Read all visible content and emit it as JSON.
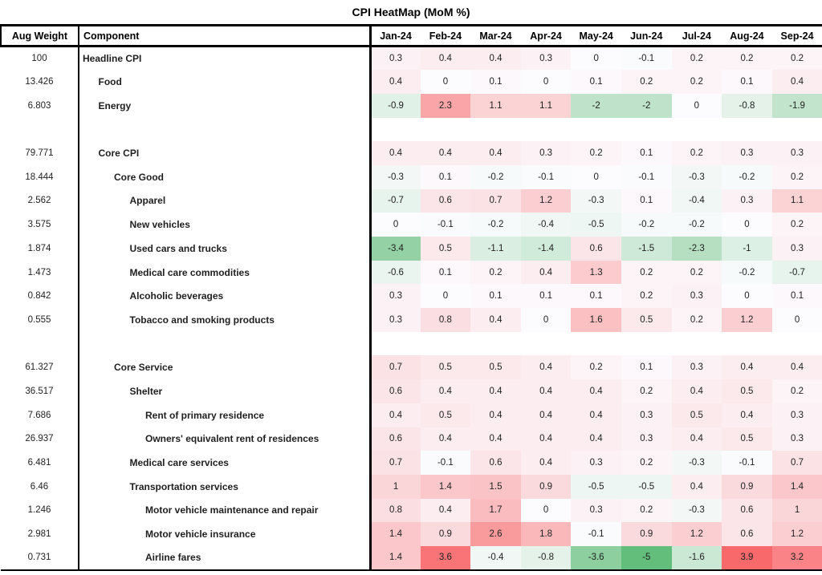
{
  "title": "CPI HeatMap (MoM %)",
  "header": {
    "weight": "Aug Weight",
    "component": "Component"
  },
  "chart_data": {
    "type": "heatmap",
    "title": "CPI HeatMap (MoM %)",
    "columns": [
      "Jan-24",
      "Feb-24",
      "Mar-24",
      "Apr-24",
      "May-24",
      "Jun-24",
      "Jul-24",
      "Aug-24",
      "Sep-24"
    ],
    "color_scale": {
      "min": -5,
      "mid": 0,
      "max": 3.9,
      "min_color": "#63BE7B",
      "mid_color": "#FCFCFF",
      "max_color": "#F8696B"
    },
    "rows": [
      {
        "weight": 100,
        "component": "Headline CPI",
        "indent": 0,
        "values": [
          0.3,
          0.4,
          0.4,
          0.3,
          0,
          -0.1,
          0.2,
          0.2,
          0.2
        ]
      },
      {
        "weight": 13.426,
        "component": "Food",
        "indent": 1,
        "values": [
          0.4,
          0,
          0.1,
          0,
          0.1,
          0.2,
          0.2,
          0.1,
          0.4
        ]
      },
      {
        "weight": 6.803,
        "component": "Energy",
        "indent": 1,
        "values": [
          -0.9,
          2.3,
          1.1,
          1.1,
          -2,
          -2,
          0,
          -0.8,
          -1.9
        ]
      },
      {
        "spacer": true
      },
      {
        "weight": 79.771,
        "component": "Core CPI",
        "indent": 1,
        "values": [
          0.4,
          0.4,
          0.4,
          0.3,
          0.2,
          0.1,
          0.2,
          0.3,
          0.3
        ]
      },
      {
        "weight": 18.444,
        "component": "Core Good",
        "indent": 2,
        "values": [
          -0.3,
          0.1,
          -0.2,
          -0.1,
          0,
          -0.1,
          -0.3,
          -0.2,
          0.2
        ]
      },
      {
        "weight": 2.562,
        "component": "Apparel",
        "indent": 3,
        "values": [
          -0.7,
          0.6,
          0.7,
          1.2,
          -0.3,
          0.1,
          -0.4,
          0.3,
          1.1
        ]
      },
      {
        "weight": 3.575,
        "component": "New vehicles",
        "indent": 3,
        "values": [
          0,
          -0.1,
          -0.2,
          -0.4,
          -0.5,
          -0.2,
          -0.2,
          0,
          0.2
        ]
      },
      {
        "weight": 1.874,
        "component": "Used cars and trucks",
        "indent": 3,
        "values": [
          -3.4,
          0.5,
          -1.1,
          -1.4,
          0.6,
          -1.5,
          -2.3,
          -1,
          0.3
        ]
      },
      {
        "weight": 1.473,
        "component": "Medical care commodities",
        "indent": 3,
        "values": [
          -0.6,
          0.1,
          0.2,
          0.4,
          1.3,
          0.2,
          0.2,
          -0.2,
          -0.7
        ]
      },
      {
        "weight": 0.842,
        "component": "Alcoholic beverages",
        "indent": 3,
        "values": [
          0.3,
          0,
          0.1,
          0.1,
          0.1,
          0.2,
          0.3,
          0,
          0.1
        ]
      },
      {
        "weight": 0.555,
        "component": "Tobacco and smoking products",
        "indent": 3,
        "values": [
          0.3,
          0.8,
          0.4,
          0,
          1.6,
          0.5,
          0.2,
          1.2,
          0
        ]
      },
      {
        "spacer": true
      },
      {
        "weight": 61.327,
        "component": "Core Service",
        "indent": 2,
        "values": [
          0.7,
          0.5,
          0.5,
          0.4,
          0.2,
          0.1,
          0.3,
          0.4,
          0.4
        ]
      },
      {
        "weight": 36.517,
        "component": "Shelter",
        "indent": 3,
        "values": [
          0.6,
          0.4,
          0.4,
          0.4,
          0.4,
          0.2,
          0.4,
          0.5,
          0.2
        ]
      },
      {
        "weight": 7.686,
        "component": "Rent of primary residence",
        "indent": 4,
        "values": [
          0.4,
          0.5,
          0.4,
          0.4,
          0.4,
          0.3,
          0.5,
          0.4,
          0.3
        ]
      },
      {
        "weight": 26.937,
        "component": "Owners' equivalent rent of residences",
        "indent": 4,
        "values": [
          0.6,
          0.4,
          0.4,
          0.4,
          0.4,
          0.3,
          0.4,
          0.5,
          0.3
        ]
      },
      {
        "weight": 6.481,
        "component": "Medical care services",
        "indent": 3,
        "values": [
          0.7,
          -0.1,
          0.6,
          0.4,
          0.3,
          0.2,
          -0.3,
          -0.1,
          0.7
        ]
      },
      {
        "weight": 6.46,
        "component": "Transportation services",
        "indent": 3,
        "values": [
          1,
          1.4,
          1.5,
          0.9,
          -0.5,
          -0.5,
          0.4,
          0.9,
          1.4
        ]
      },
      {
        "weight": 1.246,
        "component": "Motor vehicle maintenance and repair",
        "indent": 4,
        "values": [
          0.8,
          0.4,
          1.7,
          0,
          0.3,
          0.2,
          -0.3,
          0.6,
          1
        ]
      },
      {
        "weight": 2.981,
        "component": "Motor vehicle insurance",
        "indent": 4,
        "values": [
          1.4,
          0.9,
          2.6,
          1.8,
          -0.1,
          0.9,
          1.2,
          0.6,
          1.2
        ]
      },
      {
        "weight": 0.731,
        "component": "Airline fares",
        "indent": 4,
        "values": [
          1.4,
          3.6,
          -0.4,
          -0.8,
          -3.6,
          -5,
          -1.6,
          3.9,
          3.2
        ]
      }
    ]
  }
}
